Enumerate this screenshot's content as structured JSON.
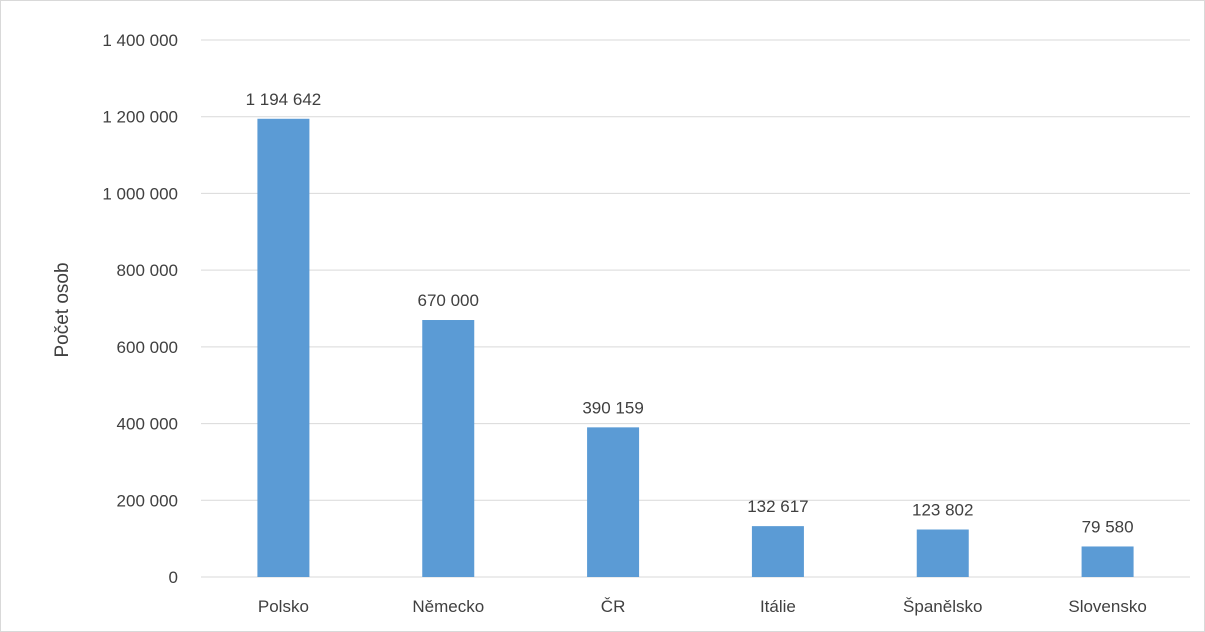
{
  "chart_data": {
    "type": "bar",
    "categories": [
      "Polsko",
      "Německo",
      "ČR",
      "Itálie",
      "Španělsko",
      "Slovensko"
    ],
    "values": [
      1194642,
      670000,
      390159,
      132617,
      123802,
      79580
    ],
    "data_labels": [
      "1 194 642",
      "670 000",
      "390 159",
      "132 617",
      "123 802",
      "79 580"
    ],
    "title": "",
    "xlabel": "",
    "ylabel": "Počet osob",
    "ylim": [
      0,
      1400000
    ],
    "y_ticks": [
      0,
      200000,
      400000,
      600000,
      800000,
      1000000,
      1200000,
      1400000
    ],
    "y_tick_labels": [
      "0",
      "200 000",
      "400 000",
      "600 000",
      "800 000",
      "1 000 000",
      "1 200 000",
      "1 400 000"
    ],
    "grid": true,
    "legend": "none",
    "bar_color": "#5b9bd5",
    "grid_color": "#d9d9d9"
  }
}
